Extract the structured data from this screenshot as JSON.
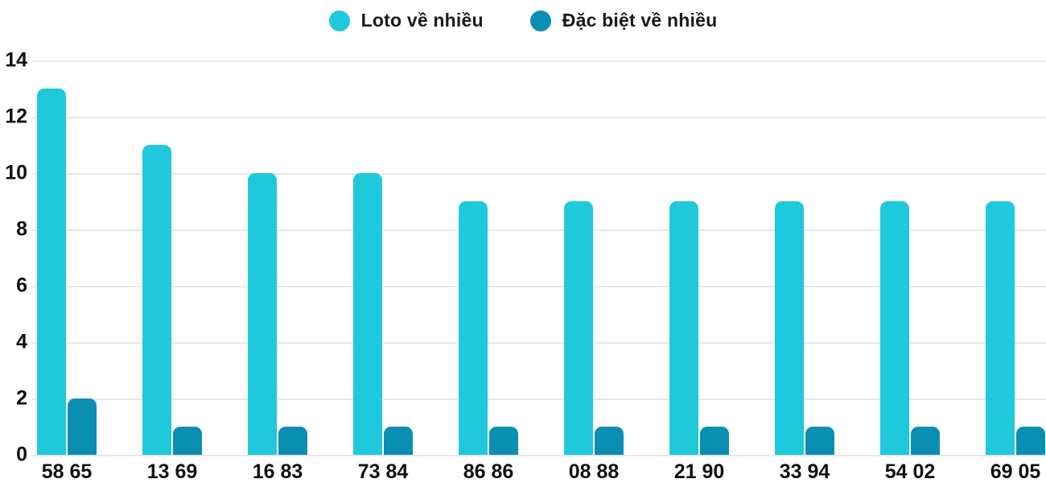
{
  "chart_data": {
    "type": "bar",
    "title": "",
    "xlabel": "",
    "ylabel": "",
    "categories": [
      "58 65",
      "13 69",
      "16 83",
      "73 84",
      "86 86",
      "08 88",
      "21 90",
      "33 94",
      "54 02",
      "69 05"
    ],
    "series": [
      {
        "name": "Loto về nhiều",
        "color": "#1FC9DB",
        "values": [
          13,
          11,
          10,
          10,
          9,
          9,
          9,
          9,
          9,
          9
        ]
      },
      {
        "name": "Đặc biệt về nhiều",
        "color": "#0A8FB3",
        "values": [
          2,
          1,
          1,
          1,
          1,
          1,
          1,
          1,
          1,
          1
        ]
      }
    ],
    "ylim": [
      0,
      14
    ],
    "y_ticks": [
      0,
      2,
      4,
      6,
      8,
      10,
      12,
      14
    ],
    "grid": true,
    "legend_position": "top-center"
  },
  "colors": {
    "background": "#FFFFFF",
    "gridline": "#E7E7E7",
    "text": "#111111"
  }
}
